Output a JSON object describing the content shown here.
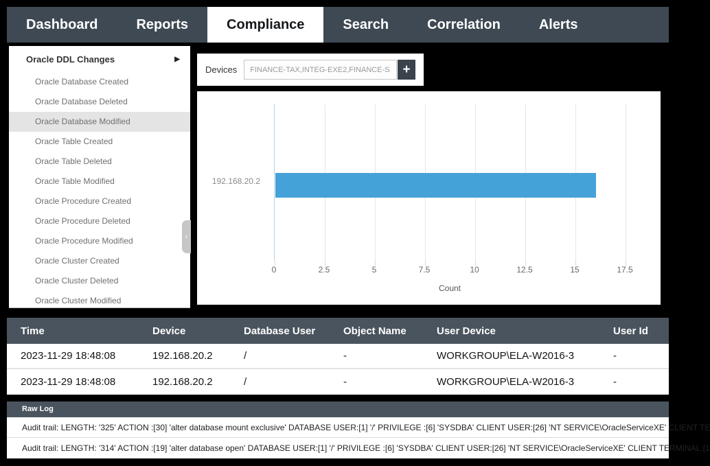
{
  "nav": {
    "tabs": [
      {
        "label": "Dashboard",
        "active": false
      },
      {
        "label": "Reports",
        "active": false
      },
      {
        "label": "Compliance",
        "active": true
      },
      {
        "label": "Search",
        "active": false
      },
      {
        "label": "Correlation",
        "active": false
      },
      {
        "label": "Alerts",
        "active": false
      }
    ]
  },
  "sidebar": {
    "header": {
      "label": "Oracle DDL Changes",
      "arrow_icon": "▶"
    },
    "items": [
      {
        "label": "Oracle Database Created",
        "selected": false
      },
      {
        "label": "Oracle Database Deleted",
        "selected": false
      },
      {
        "label": "Oracle Database Modified",
        "selected": true
      },
      {
        "label": "Oracle Table Created",
        "selected": false
      },
      {
        "label": "Oracle Table Deleted",
        "selected": false
      },
      {
        "label": "Oracle Table Modified",
        "selected": false
      },
      {
        "label": "Oracle Procedure Created",
        "selected": false
      },
      {
        "label": "Oracle Procedure Deleted",
        "selected": false
      },
      {
        "label": "Oracle Procedure Modified",
        "selected": false
      },
      {
        "label": "Oracle Cluster Created",
        "selected": false
      },
      {
        "label": "Oracle Cluster Deleted",
        "selected": false
      },
      {
        "label": "Oracle Cluster Modified",
        "selected": false
      }
    ],
    "collapse_icon": "‹"
  },
  "devices": {
    "label": "Devices",
    "value": "FINANCE-TAX,INTEG-EXE2,FINANCE-S...",
    "add_icon": "+"
  },
  "chart_data": {
    "type": "bar",
    "orientation": "horizontal",
    "title": "",
    "categories": [
      "192.168.20.2"
    ],
    "values": [
      16
    ],
    "series": [
      {
        "name": "Count",
        "values": [
          16
        ]
      }
    ],
    "xlabel": "Count",
    "ylabel": "",
    "xlim": [
      0,
      17.5
    ],
    "ticks": [
      "0",
      "2.5",
      "5",
      "7.5",
      "10",
      "12.5",
      "15",
      "17.5"
    ],
    "grid": true,
    "legend": false,
    "bar_color": "#45a2d9"
  },
  "table": {
    "columns": [
      "Time",
      "Device",
      "Database User",
      "Object Name",
      "User Device",
      "User Id"
    ],
    "rows": [
      [
        "2023-11-29 18:48:08",
        "192.168.20.2",
        "/",
        "-",
        "WORKGROUP\\ELA-W2016-3",
        "-"
      ],
      [
        "2023-11-29 18:48:08",
        "192.168.20.2",
        "/",
        "-",
        "WORKGROUP\\ELA-W2016-3",
        "-"
      ]
    ]
  },
  "raw_log": {
    "title": "Raw Log",
    "entries": [
      "Audit trail: LENGTH: '325' ACTION :[30] 'alter database mount exclusive' DATABASE USER:[1] '/' PRIVILEGE :[6] 'SYSDBA' CLIENT USER:[26] 'NT SERVICE\\OracleServiceXE' CLIENT TE",
      "Audit trail: LENGTH: '314' ACTION :[19] 'alter database open' DATABASE USER:[1] '/' PRIVILEGE :[6] 'SYSDBA' CLIENT USER:[26] 'NT SERVICE\\OracleServiceXE' CLIENT TERMINAL:[1"
    ]
  }
}
